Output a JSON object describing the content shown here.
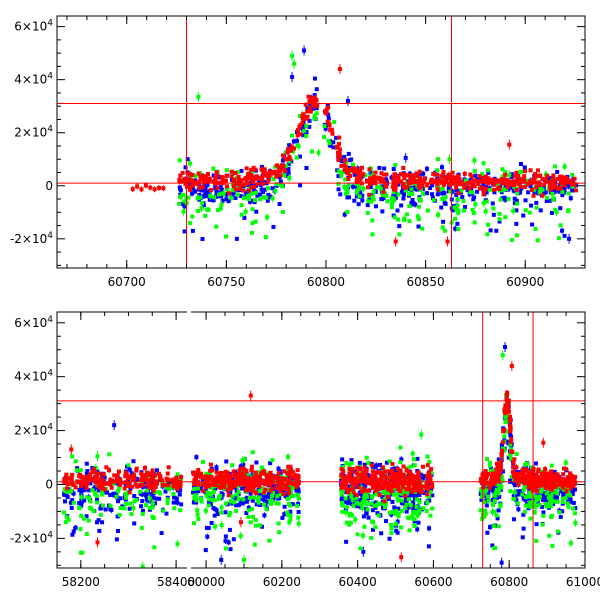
{
  "chart_data": [
    {
      "type": "scatter",
      "name": "top-panel-zoom",
      "xlim": [
        60665,
        60930
      ],
      "ylim": [
        -31000,
        64000
      ],
      "x_ticks": [
        60700,
        60750,
        60800,
        60850,
        60900
      ],
      "x_tick_labels": [
        "60700",
        "60750",
        "60800",
        "60850",
        "60900"
      ],
      "y_ticks": [
        -20000,
        0,
        20000,
        40000,
        60000
      ],
      "y_tick_labels": [
        "-2×10^4",
        "0",
        "2×10^4",
        "4×10^4",
        "6×10^4"
      ],
      "ref_lines": {
        "y": [
          1000,
          31000
        ],
        "x": [
          60730,
          60863
        ],
        "color": "#ff0000"
      },
      "series_colors": {
        "blue": "#0000ff",
        "green": "#00ff00",
        "red": "#ff0000"
      },
      "highlights": [
        {
          "series": "blue",
          "x": 60789,
          "y": 51000
        },
        {
          "series": "green",
          "x": 60783,
          "y": 49000
        },
        {
          "series": "green",
          "x": 60784,
          "y": 46000
        },
        {
          "series": "red",
          "x": 60807,
          "y": 44000
        },
        {
          "series": "blue",
          "x": 60783,
          "y": 41000
        },
        {
          "series": "green",
          "x": 60736,
          "y": 33500
        },
        {
          "series": "blue",
          "x": 60811,
          "y": 32000
        },
        {
          "series": "red",
          "x": 60892,
          "y": 15500
        },
        {
          "series": "blue",
          "x": 60840,
          "y": 10500
        },
        {
          "series": "green",
          "x": 60862,
          "y": 10000
        },
        {
          "series": "red",
          "x": 60835,
          "y": -21000
        },
        {
          "series": "red",
          "x": 60861,
          "y": -21000
        },
        {
          "series": "blue",
          "x": 60922,
          "y": -20000
        },
        {
          "series": "green",
          "x": 60892,
          "y": 4000
        }
      ]
    },
    {
      "type": "scatter",
      "name": "bottom-panel-full",
      "xlim": [
        58150,
        61000
      ],
      "ylim": [
        -31000,
        64000
      ],
      "x_ticks": [
        58200,
        58400,
        60000,
        60200,
        60400,
        60600,
        60800,
        61000
      ],
      "x_tick_labels": [
        "58200",
        "58400",
        "60000",
        "60200",
        "60400",
        "60600",
        "60800",
        "61000"
      ],
      "axis_break": {
        "gap": [
          58425,
          59955
        ],
        "ticks_left": [
          58200,
          58400
        ],
        "ticks_right": [
          60000,
          60200,
          60400,
          60600,
          60800,
          61000
        ]
      },
      "y_ticks": [
        -20000,
        0,
        20000,
        40000,
        60000
      ],
      "y_tick_labels": [
        "-2×10^4",
        "0",
        "2×10^4",
        "4×10^4",
        "6×10^4"
      ],
      "ref_lines": {
        "y": [
          1000,
          31000
        ],
        "x": [
          60730,
          60863
        ],
        "color": "#ff0000"
      },
      "series_colors": {
        "blue": "#0000ff",
        "green": "#00ff00",
        "red": "#ff0000"
      },
      "highlights": [
        {
          "series": "blue",
          "x": 60789,
          "y": 51000
        },
        {
          "series": "green",
          "x": 60783,
          "y": 48000
        },
        {
          "series": "red",
          "x": 60807,
          "y": 44000
        },
        {
          "series": "red",
          "x": 60118,
          "y": 33000
        },
        {
          "series": "green",
          "x": 60568,
          "y": 18500
        },
        {
          "series": "blue",
          "x": 58270,
          "y": 22000
        },
        {
          "series": "red",
          "x": 58180,
          "y": 13000
        },
        {
          "series": "green",
          "x": 58235,
          "y": 10500
        },
        {
          "series": "red",
          "x": 60890,
          "y": 15500
        },
        {
          "series": "red",
          "x": 58235,
          "y": -21500
        },
        {
          "series": "blue",
          "x": 58185,
          "y": -17500
        },
        {
          "series": "blue",
          "x": 60040,
          "y": -28000
        },
        {
          "series": "green",
          "x": 60100,
          "y": -28000
        },
        {
          "series": "blue",
          "x": 60415,
          "y": -25000
        },
        {
          "series": "red",
          "x": 60515,
          "y": -27000
        },
        {
          "series": "red",
          "x": 60092,
          "y": -14000
        },
        {
          "series": "green",
          "x": 58330,
          "y": -30500
        },
        {
          "series": "blue",
          "x": 60780,
          "y": -29000
        }
      ]
    }
  ]
}
